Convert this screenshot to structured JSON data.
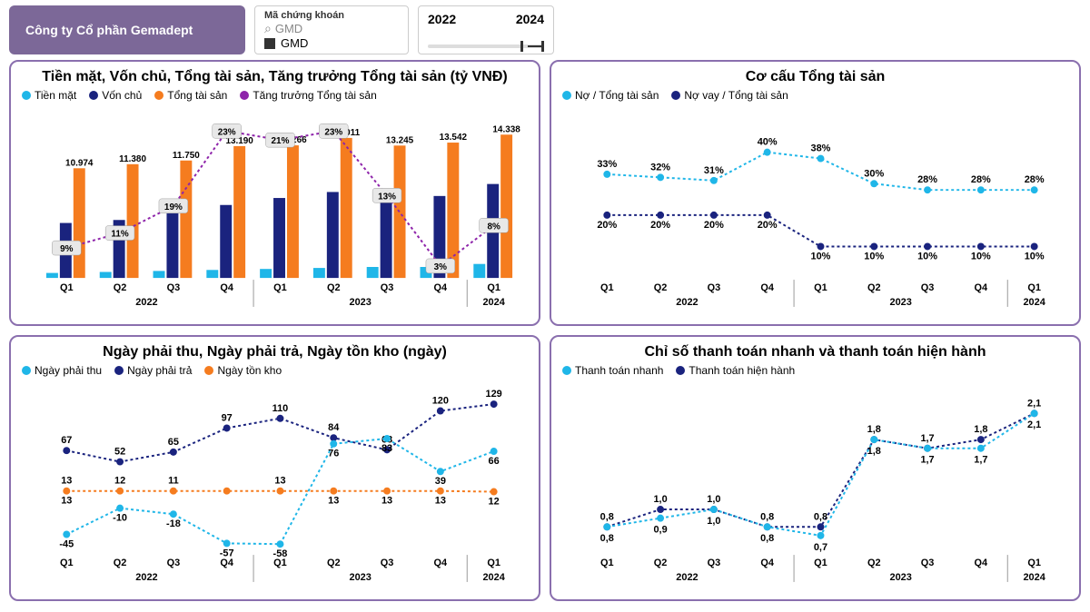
{
  "header": {
    "company": "Công ty Cổ phần Gemadept",
    "filter_label": "Mã chứng khoán",
    "filter_search": "GMD",
    "filter_selected": "GMD",
    "year_from": "2022",
    "year_to": "2024"
  },
  "colors": {
    "cyan": "#1fb6e8",
    "navy": "#1a237e",
    "orange": "#f57c1f",
    "purple": "#8e24aa",
    "panel_border": "#8a6fae",
    "badge_bg": "#e8e8e8"
  },
  "quarters": [
    "Q1",
    "Q2",
    "Q3",
    "Q4",
    "Q1",
    "Q2",
    "Q3",
    "Q4",
    "Q1"
  ],
  "year_groups": [
    {
      "label": "2022",
      "span": [
        0,
        3
      ]
    },
    {
      "label": "2023",
      "span": [
        4,
        7
      ]
    },
    {
      "label": "2024",
      "span": [
        8,
        8
      ]
    }
  ],
  "chart1": {
    "title": "Tiền mặt, Vốn chủ, Tổng tài sản, Tăng trưởng Tổng tài sản (tỷ VNĐ)",
    "legend": [
      {
        "label": "Tiền mặt",
        "color": "#1fb6e8"
      },
      {
        "label": "Vốn chủ",
        "color": "#1a237e"
      },
      {
        "label": "Tổng tài sản",
        "color": "#f57c1f"
      },
      {
        "label": "Tăng trưởng Tổng tài sản",
        "color": "#8e24aa"
      }
    ],
    "yMax": 15000,
    "tien_mat": [
      500,
      600,
      700,
      800,
      900,
      1000,
      1100,
      1100,
      1400
    ],
    "von_chu": [
      5500,
      5800,
      6800,
      7300,
      8000,
      8600,
      7800,
      8200,
      9400
    ],
    "tong_tai_san": [
      10974,
      11380,
      11750,
      13190,
      13266,
      14011,
      13245,
      13542,
      14338
    ],
    "tong_labels": [
      "10.974",
      "11.380",
      "11.750",
      "13.190",
      "13.266",
      "14.011",
      "13.245",
      "13.542",
      "14.338"
    ],
    "growth_pct": [
      "9%",
      "11%",
      "19%",
      "23%",
      "21%",
      "23%",
      "13%",
      "3%",
      "8%"
    ],
    "growth_y": [
      0.2,
      0.3,
      0.48,
      0.98,
      0.92,
      0.98,
      0.55,
      0.08,
      0.35
    ]
  },
  "chart2": {
    "title": "Cơ cấu Tổng tài sản",
    "legend": [
      {
        "label": "Nợ / Tổng tài sản",
        "color": "#1fb6e8"
      },
      {
        "label": "Nợ vay / Tổng tài sản",
        "color": "#1a237e"
      }
    ],
    "yMax": 50,
    "series1": [
      33,
      32,
      31,
      40,
      38,
      30,
      28,
      28,
      28
    ],
    "series1_labels": [
      "33%",
      "32%",
      "31%",
      "40%",
      "38%",
      "30%",
      "28%",
      "28%",
      "28%"
    ],
    "series2": [
      20,
      20,
      20,
      20,
      10,
      10,
      10,
      10,
      10
    ],
    "series2_labels": [
      "20%",
      "20%",
      "20%",
      "20%",
      "10%",
      "10%",
      "10%",
      "10%",
      "10%"
    ]
  },
  "chart3": {
    "title": "Ngày phải thu, Ngày phải trả, Ngày tồn kho (ngày)",
    "legend": [
      {
        "label": "Ngày phải thu",
        "color": "#1fb6e8"
      },
      {
        "label": "Ngày phải trả",
        "color": "#1a237e"
      },
      {
        "label": "Ngày tồn kho",
        "color": "#f57c1f"
      }
    ],
    "yMin": -70,
    "yMax": 140,
    "phai_thu": [
      -45,
      -10,
      -18,
      -57,
      -58,
      76,
      83,
      39,
      66
    ],
    "phai_thu_labels": [
      "-45",
      "-10",
      "-18",
      "-57",
      "-58",
      "76",
      "83",
      "39",
      "66"
    ],
    "phai_thu_top": [
      13,
      12,
      11,
      null,
      13,
      null,
      null,
      null,
      null
    ],
    "phai_tra": [
      67,
      52,
      65,
      97,
      110,
      84,
      68,
      120,
      129
    ],
    "phai_tra_labels": [
      "67",
      "52",
      "65",
      "97",
      "110",
      "84",
      "68",
      "120",
      "129"
    ],
    "ton_kho": [
      13,
      13,
      13,
      13,
      13,
      13,
      13,
      13,
      12
    ],
    "ton_kho_labels": [
      "13",
      "",
      "",
      "",
      "",
      "13",
      "13",
      "13",
      "12"
    ]
  },
  "chart4": {
    "title": "Chỉ số thanh toán nhanh và thanh toán hiện hành",
    "legend": [
      {
        "label": "Thanh toán nhanh",
        "color": "#1fb6e8"
      },
      {
        "label": "Thanh toán hiện hành",
        "color": "#1a237e"
      }
    ],
    "yMin": 0.5,
    "yMax": 2.3,
    "nhanh": [
      0.8,
      0.9,
      1.0,
      0.8,
      0.7,
      1.8,
      1.7,
      1.7,
      2.1
    ],
    "nhanh_labels": [
      "0,8",
      "0,9",
      "1,0",
      "0,8",
      "0,7",
      "1,8",
      "1,7",
      "1,7",
      "2,1"
    ],
    "hien_hanh": [
      0.8,
      1.0,
      1.0,
      0.8,
      0.8,
      1.8,
      1.7,
      1.8,
      2.1
    ],
    "hien_hanh_labels": [
      "0,8",
      "1,0",
      "1,0",
      "0,8",
      "0,8",
      "1,8",
      "1,7",
      "1,8",
      "2,1"
    ]
  }
}
